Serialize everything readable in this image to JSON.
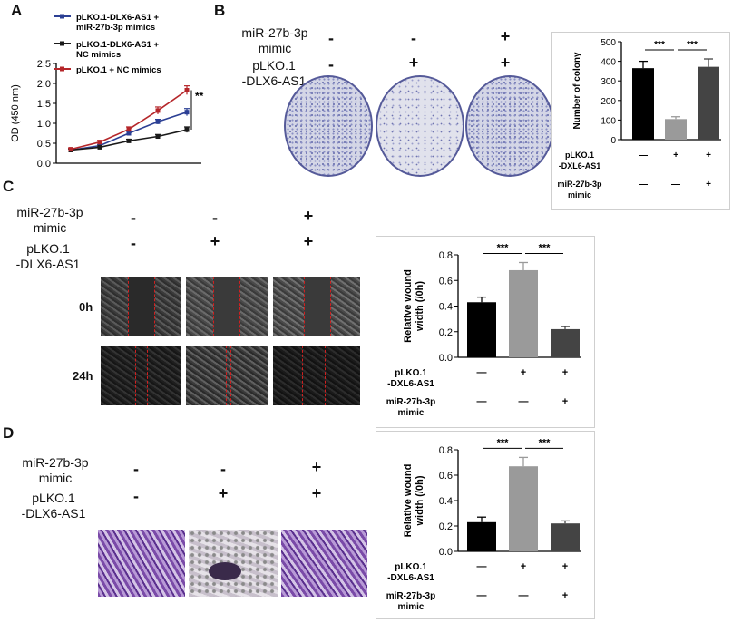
{
  "panels": {
    "A": {
      "letter": "A",
      "chart_data": {
        "type": "line",
        "ylabel": "OD (450 nm)",
        "ylim": [
          0.0,
          2.5
        ],
        "yticks": [
          "0.0",
          "0.5",
          "1.0",
          "1.5",
          "2.0",
          "2.5"
        ],
        "x": [
          1,
          2,
          3,
          4,
          5
        ],
        "significance": "**",
        "series": [
          {
            "name": "pLKO.1-DLX6-AS1 + miR-27b-3p mimics",
            "name_lines": [
              "pLKO.1-DLX6-AS1 +",
              "miR-27b-3p mimics"
            ],
            "color": "#2b3f94",
            "values": [
              0.33,
              0.44,
              0.75,
              1.04,
              1.28
            ],
            "errors": [
              0.03,
              0.03,
              0.05,
              0.06,
              0.09
            ]
          },
          {
            "name": "pLKO.1-DLX6-AS1 + NC mimics",
            "name_lines": [
              "pLKO.1-DLX6-AS1 +",
              "NC mimics"
            ],
            "color": "#1a1a1a",
            "values": [
              0.33,
              0.4,
              0.56,
              0.67,
              0.84
            ],
            "errors": [
              0.03,
              0.03,
              0.04,
              0.05,
              0.07
            ]
          },
          {
            "name": "pLKO.1 + NC mimics",
            "name_lines": [
              "pLKO.1 +  NC mimics"
            ],
            "color": "#b5262a",
            "values": [
              0.35,
              0.53,
              0.85,
              1.32,
              1.83
            ],
            "errors": [
              0.03,
              0.04,
              0.06,
              0.09,
              0.11
            ]
          }
        ]
      }
    },
    "B": {
      "letter": "B",
      "row1_label": [
        "miR-27b-3p",
        "mimic"
      ],
      "row2_label": [
        "pLKO.1",
        "-DLX6-AS1"
      ],
      "row1_signs": [
        "-",
        "-",
        "+"
      ],
      "row2_signs": [
        "-",
        "+",
        "+"
      ],
      "chart_data": {
        "type": "bar",
        "ylabel": "Number of colony",
        "ylim": [
          0,
          500
        ],
        "yticks": [
          "0",
          "100",
          "200",
          "300",
          "400",
          "500"
        ],
        "values": [
          365,
          105,
          372
        ],
        "errors": [
          35,
          12,
          40
        ],
        "colors": [
          "#000000",
          "#9a9a9a",
          "#444444"
        ],
        "significance": [
          "***",
          "***"
        ],
        "row1_label": [
          "pLKO.1",
          "-DXL6-AS1"
        ],
        "row2_label": [
          "miR-27b-3p",
          "mimic"
        ],
        "row1_signs": [
          "—",
          "+",
          "+"
        ],
        "row2_signs": [
          "—",
          "—",
          "+"
        ]
      }
    },
    "C": {
      "letter": "C",
      "row1_label": [
        "miR-27b-3p",
        "mimic"
      ],
      "row2_label": [
        "pLKO.1",
        "-DLX6-AS1"
      ],
      "row1_signs": [
        "-",
        "-",
        "+"
      ],
      "row2_signs": [
        "-",
        "+",
        "+"
      ],
      "time_labels": [
        "0h",
        "24h"
      ],
      "chart_data": {
        "type": "bar",
        "ylabel": [
          "Relative wound",
          "width (/0h)"
        ],
        "ylim": [
          0,
          0.8
        ],
        "yticks": [
          "0.0",
          "0.2",
          "0.4",
          "0.6",
          "0.8"
        ],
        "values": [
          0.43,
          0.68,
          0.22
        ],
        "errors": [
          0.04,
          0.06,
          0.02
        ],
        "colors": [
          "#000000",
          "#9a9a9a",
          "#444444"
        ],
        "significance": [
          "***",
          "***"
        ],
        "row1_label": [
          "pLKO.1",
          "-DXL6-AS1"
        ],
        "row2_label": [
          "miR-27b-3p",
          "mimic"
        ],
        "row1_signs": [
          "—",
          "+",
          "+"
        ],
        "row2_signs": [
          "—",
          "—",
          "+"
        ]
      }
    },
    "D": {
      "letter": "D",
      "row1_label": [
        "miR-27b-3p",
        "mimic"
      ],
      "row2_label": [
        "pLKO.1",
        "-DLX6-AS1"
      ],
      "row1_signs": [
        "-",
        "-",
        "+"
      ],
      "row2_signs": [
        "-",
        "+",
        "+"
      ],
      "chart_data": {
        "type": "bar",
        "ylabel": [
          "Relative wound",
          "width (/0h)"
        ],
        "ylim": [
          0,
          0.8
        ],
        "yticks": [
          "0.0",
          "0.2",
          "0.4",
          "0.6",
          "0.8"
        ],
        "values": [
          0.23,
          0.67,
          0.22
        ],
        "errors": [
          0.04,
          0.07,
          0.02
        ],
        "colors": [
          "#000000",
          "#9a9a9a",
          "#444444"
        ],
        "significance": [
          "***",
          "***"
        ],
        "row1_label": [
          "pLKO.1",
          "-DXL6-AS1"
        ],
        "row2_label": [
          "miR-27b-3p",
          "mimic"
        ],
        "row1_signs": [
          "—",
          "+",
          "+"
        ],
        "row2_signs": [
          "—",
          "—",
          "+"
        ]
      }
    }
  }
}
